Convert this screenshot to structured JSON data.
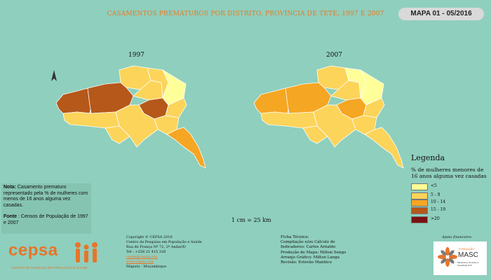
{
  "title": "CASAMENTOS PREMATUROS POR DISTRITO, PROVÍNCIA DE TETE, 1997 E 2007",
  "map_id": "MAPA 01 - 05/2016",
  "maps": [
    {
      "year": "1997"
    },
    {
      "year": "2007"
    }
  ],
  "legend": {
    "title": "Legenda",
    "subtitle": "% de mulheres menores de 16 anos alguma vez casadas",
    "items": [
      {
        "label": "<5",
        "color": "#ffff99"
      },
      {
        "label": "5 - 9",
        "color": "#fcd45a"
      },
      {
        "label": "10 - 14",
        "color": "#f5a623"
      },
      {
        "label": "15 - 19",
        "color": "#b5581a"
      },
      {
        "label": ">20",
        "color": "#7a1212"
      }
    ]
  },
  "note": {
    "label": "Nota:",
    "text": "Casamento prematuro representado pela % de mulheres com menos de 16 anos alguma vez casadas.",
    "source_label": "Fonte",
    "source_text": ": Censos de População de 1997 e 2007"
  },
  "scale": "1 cm = 25 km",
  "copyright": {
    "line1": "Copyright © CEPSA 2016",
    "line2": "Centro de Pesquisa em População e Saúde",
    "line3": "Rua de França Nº 72, 2º Andar/D",
    "line4": "Tel : +258 21 415 328",
    "email": "cepsa@cepsa.org",
    "web": "www.cepsa.org",
    "city": "Maputo - Moçambique"
  },
  "tech": {
    "heading": "Ficha Técnica:",
    "line1": "Compilação e/ou Cálculo de",
    "line2": "Indicadores: Carlos Arnaldo",
    "line3": "Produção de Mapa: Milton Sengo",
    "line4": "Arranjo Gráfico: Milton Langa",
    "line5": "Revisão: Estevão Manhice"
  },
  "support": "Apoio financeiro:",
  "cepsa_logo": {
    "name": "cepsa",
    "tagline": "CENTRO DE PESQUISA EM POPULAÇÃO E SAÚDE"
  },
  "masc_logo": {
    "top": "FUNDAÇÃO",
    "name": "MASC",
    "sub": "Mecanismo de Apoio à Sociedade Civil"
  },
  "icons": {
    "north_arrow": "north-arrow-icon"
  }
}
